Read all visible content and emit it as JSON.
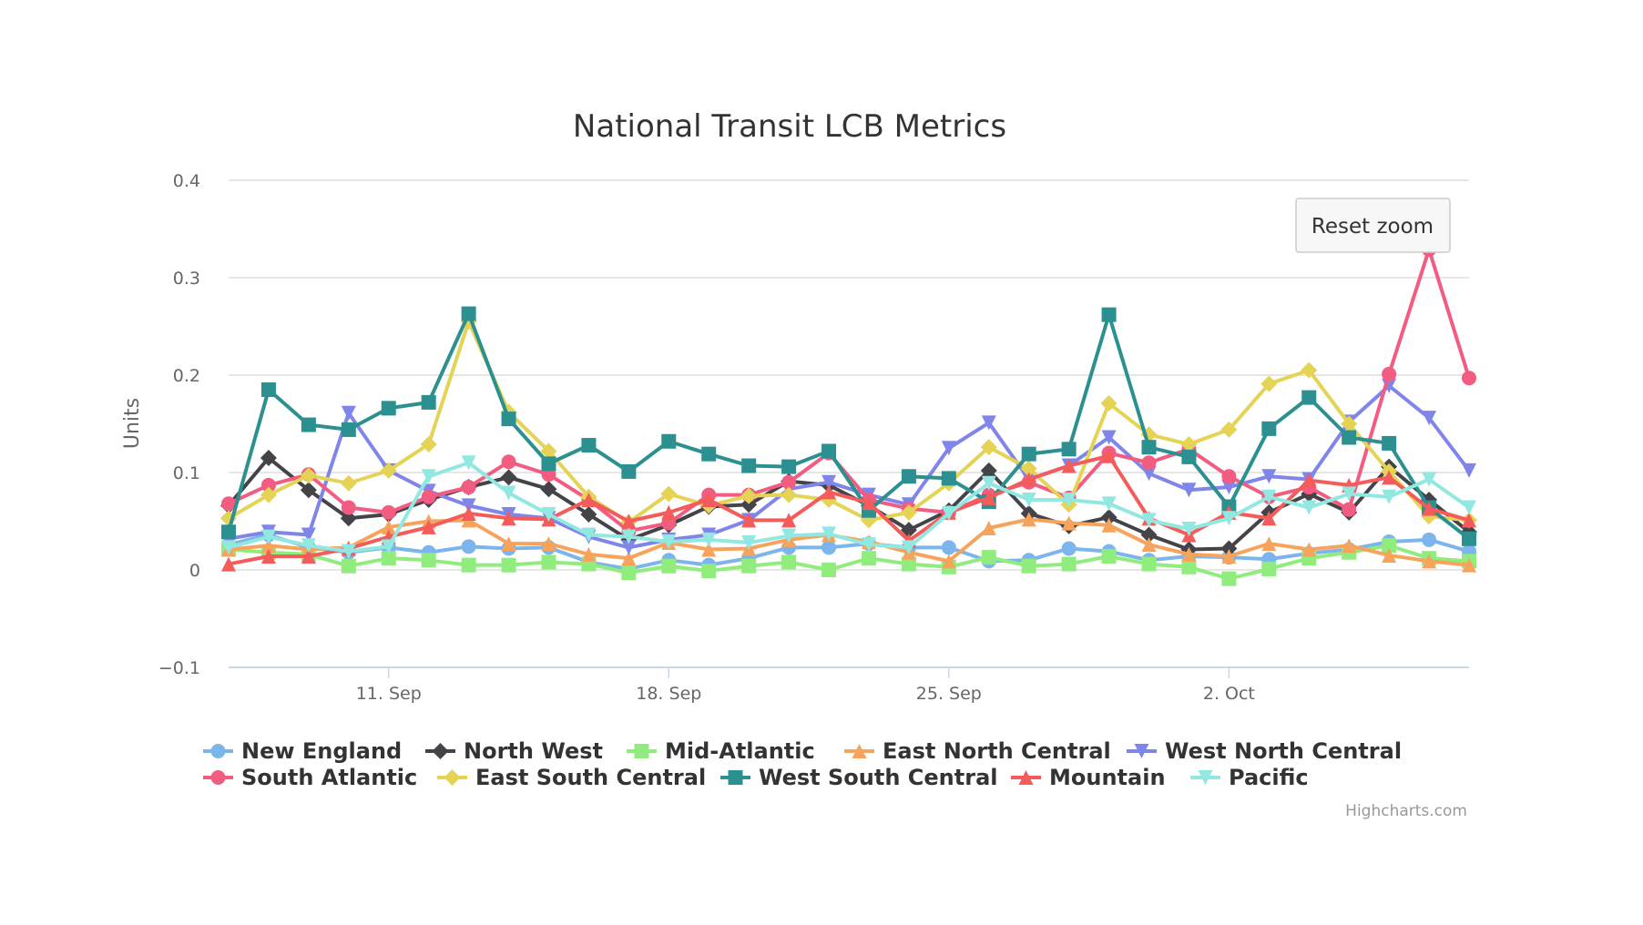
{
  "chart_data": {
    "type": "line",
    "title": "National Transit LCB Metrics",
    "ylabel": "Units",
    "xlabel": "",
    "ylim": [
      -0.1,
      0.4
    ],
    "yticks": [
      "−0.1",
      "0",
      "0.1",
      "0.2",
      "0.3",
      "0.4"
    ],
    "ytick_values": [
      -0.1,
      0,
      0.1,
      0.2,
      0.3,
      0.4
    ],
    "xticks": [
      {
        "label": "11. Sep",
        "date": "Sep 11"
      },
      {
        "label": "18. Sep",
        "date": "Sep 18"
      },
      {
        "label": "25. Sep",
        "date": "Sep 25"
      },
      {
        "label": "2. Oct",
        "date": "Oct 2"
      }
    ],
    "grid": true,
    "legend": "bottom",
    "x": [
      "Sep 7",
      "Sep 8",
      "Sep 9",
      "Sep 10",
      "Sep 11",
      "Sep 12",
      "Sep 13",
      "Sep 14",
      "Sep 15",
      "Sep 16",
      "Sep 17",
      "Sep 18",
      "Sep 19",
      "Sep 20",
      "Sep 21",
      "Sep 22",
      "Sep 23",
      "Sep 24",
      "Sep 25",
      "Sep 26",
      "Sep 27",
      "Sep 28",
      "Sep 29",
      "Sep 30",
      "Oct 1",
      "Oct 2",
      "Oct 3",
      "Oct 4",
      "Oct 5",
      "Oct 6",
      "Oct 7",
      "Oct 8"
    ],
    "series": [
      {
        "name": "New England",
        "color": "#7cb5ec",
        "marker": "circle",
        "values": [
          0.026,
          0.036,
          0.023,
          0.018,
          0.023,
          0.018,
          0.024,
          0.022,
          0.023,
          0.008,
          0.001,
          0.01,
          0.005,
          0.012,
          0.023,
          0.023,
          0.027,
          0.023,
          0.023,
          0.009,
          0.01,
          0.022,
          0.019,
          0.01,
          0.014,
          0.013,
          0.011,
          0.017,
          0.021,
          0.029,
          0.031,
          0.019
        ]
      },
      {
        "name": "North West",
        "color": "#434348",
        "marker": "diamond",
        "values": [
          0.066,
          0.115,
          0.082,
          0.053,
          0.057,
          0.072,
          0.085,
          0.095,
          0.083,
          0.057,
          0.031,
          0.046,
          0.065,
          0.067,
          0.091,
          0.087,
          0.066,
          0.041,
          0.061,
          0.102,
          0.058,
          0.045,
          0.054,
          0.036,
          0.021,
          0.022,
          0.059,
          0.078,
          0.059,
          0.106,
          0.072,
          0.039
        ]
      },
      {
        "name": "Mid-Atlantic",
        "color": "#90ed7d",
        "marker": "square",
        "values": [
          0.021,
          0.018,
          0.016,
          0.004,
          0.012,
          0.01,
          0.005,
          0.005,
          0.008,
          0.006,
          -0.003,
          0.004,
          -0.001,
          0.004,
          0.008,
          0.0,
          0.012,
          0.006,
          0.003,
          0.013,
          0.004,
          0.006,
          0.014,
          0.006,
          0.003,
          -0.009,
          0.001,
          0.012,
          0.018,
          0.025,
          0.012,
          0.009
        ]
      },
      {
        "name": "East North Central",
        "color": "#f7a35c",
        "marker": "triangle",
        "values": [
          0.021,
          0.025,
          0.021,
          0.023,
          0.044,
          0.05,
          0.051,
          0.027,
          0.027,
          0.016,
          0.012,
          0.028,
          0.021,
          0.022,
          0.031,
          0.036,
          0.029,
          0.018,
          0.009,
          0.043,
          0.052,
          0.048,
          0.046,
          0.026,
          0.016,
          0.014,
          0.027,
          0.021,
          0.025,
          0.015,
          0.009,
          0.005
        ]
      },
      {
        "name": "West North Central",
        "color": "#8085e9",
        "marker": "triangle-down",
        "values": [
          0.032,
          0.039,
          0.036,
          0.161,
          0.102,
          0.081,
          0.066,
          0.057,
          0.053,
          0.034,
          0.023,
          0.031,
          0.036,
          0.051,
          0.083,
          0.09,
          0.077,
          0.067,
          0.125,
          0.151,
          0.093,
          0.107,
          0.136,
          0.099,
          0.082,
          0.085,
          0.096,
          0.093,
          0.152,
          0.189,
          0.156,
          0.102
        ]
      },
      {
        "name": "South Atlantic",
        "color": "#f15c80",
        "marker": "circle",
        "values": [
          0.068,
          0.087,
          0.098,
          0.064,
          0.059,
          0.075,
          0.085,
          0.111,
          0.098,
          0.072,
          0.04,
          0.048,
          0.077,
          0.077,
          0.09,
          0.12,
          0.072,
          0.063,
          0.059,
          0.077,
          0.09,
          0.074,
          0.12,
          0.11,
          0.124,
          0.096,
          0.075,
          0.085,
          0.062,
          0.201,
          0.329,
          0.197
        ]
      },
      {
        "name": "East South Central",
        "color": "#e4d354",
        "marker": "diamond",
        "values": [
          0.053,
          0.077,
          0.097,
          0.089,
          0.102,
          0.129,
          0.255,
          0.162,
          0.122,
          0.075,
          0.049,
          0.078,
          0.066,
          0.076,
          0.077,
          0.072,
          0.051,
          0.059,
          0.089,
          0.126,
          0.104,
          0.067,
          0.171,
          0.139,
          0.129,
          0.144,
          0.191,
          0.205,
          0.15,
          0.101,
          0.055,
          0.051
        ]
      },
      {
        "name": "West South Central",
        "color": "#2b908f",
        "marker": "square",
        "values": [
          0.039,
          0.185,
          0.149,
          0.144,
          0.166,
          0.172,
          0.263,
          0.155,
          0.109,
          0.128,
          0.101,
          0.132,
          0.119,
          0.107,
          0.106,
          0.122,
          0.061,
          0.096,
          0.094,
          0.07,
          0.119,
          0.124,
          0.262,
          0.126,
          0.116,
          0.065,
          0.145,
          0.177,
          0.136,
          0.13,
          0.064,
          0.032
        ]
      },
      {
        "name": "Mountain",
        "color": "#f45b5b",
        "marker": "triangle",
        "values": [
          0.006,
          0.014,
          0.014,
          0.022,
          0.034,
          0.044,
          0.058,
          0.053,
          0.052,
          0.072,
          0.05,
          0.059,
          0.072,
          0.051,
          0.051,
          0.08,
          0.069,
          0.03,
          0.059,
          0.074,
          0.093,
          0.107,
          0.117,
          0.053,
          0.036,
          0.059,
          0.053,
          0.092,
          0.087,
          0.095,
          0.063,
          0.051
        ]
      },
      {
        "name": "Pacific",
        "color": "#91e8e1",
        "marker": "triangle-down",
        "values": [
          0.023,
          0.034,
          0.025,
          0.019,
          0.024,
          0.096,
          0.11,
          0.079,
          0.057,
          0.036,
          0.034,
          0.029,
          0.031,
          0.028,
          0.035,
          0.037,
          0.026,
          0.023,
          0.058,
          0.089,
          0.072,
          0.072,
          0.068,
          0.051,
          0.042,
          0.053,
          0.075,
          0.064,
          0.078,
          0.075,
          0.093,
          0.064
        ]
      }
    ]
  },
  "reset_zoom_label": "Reset zoom",
  "credits": "Highcharts.com"
}
